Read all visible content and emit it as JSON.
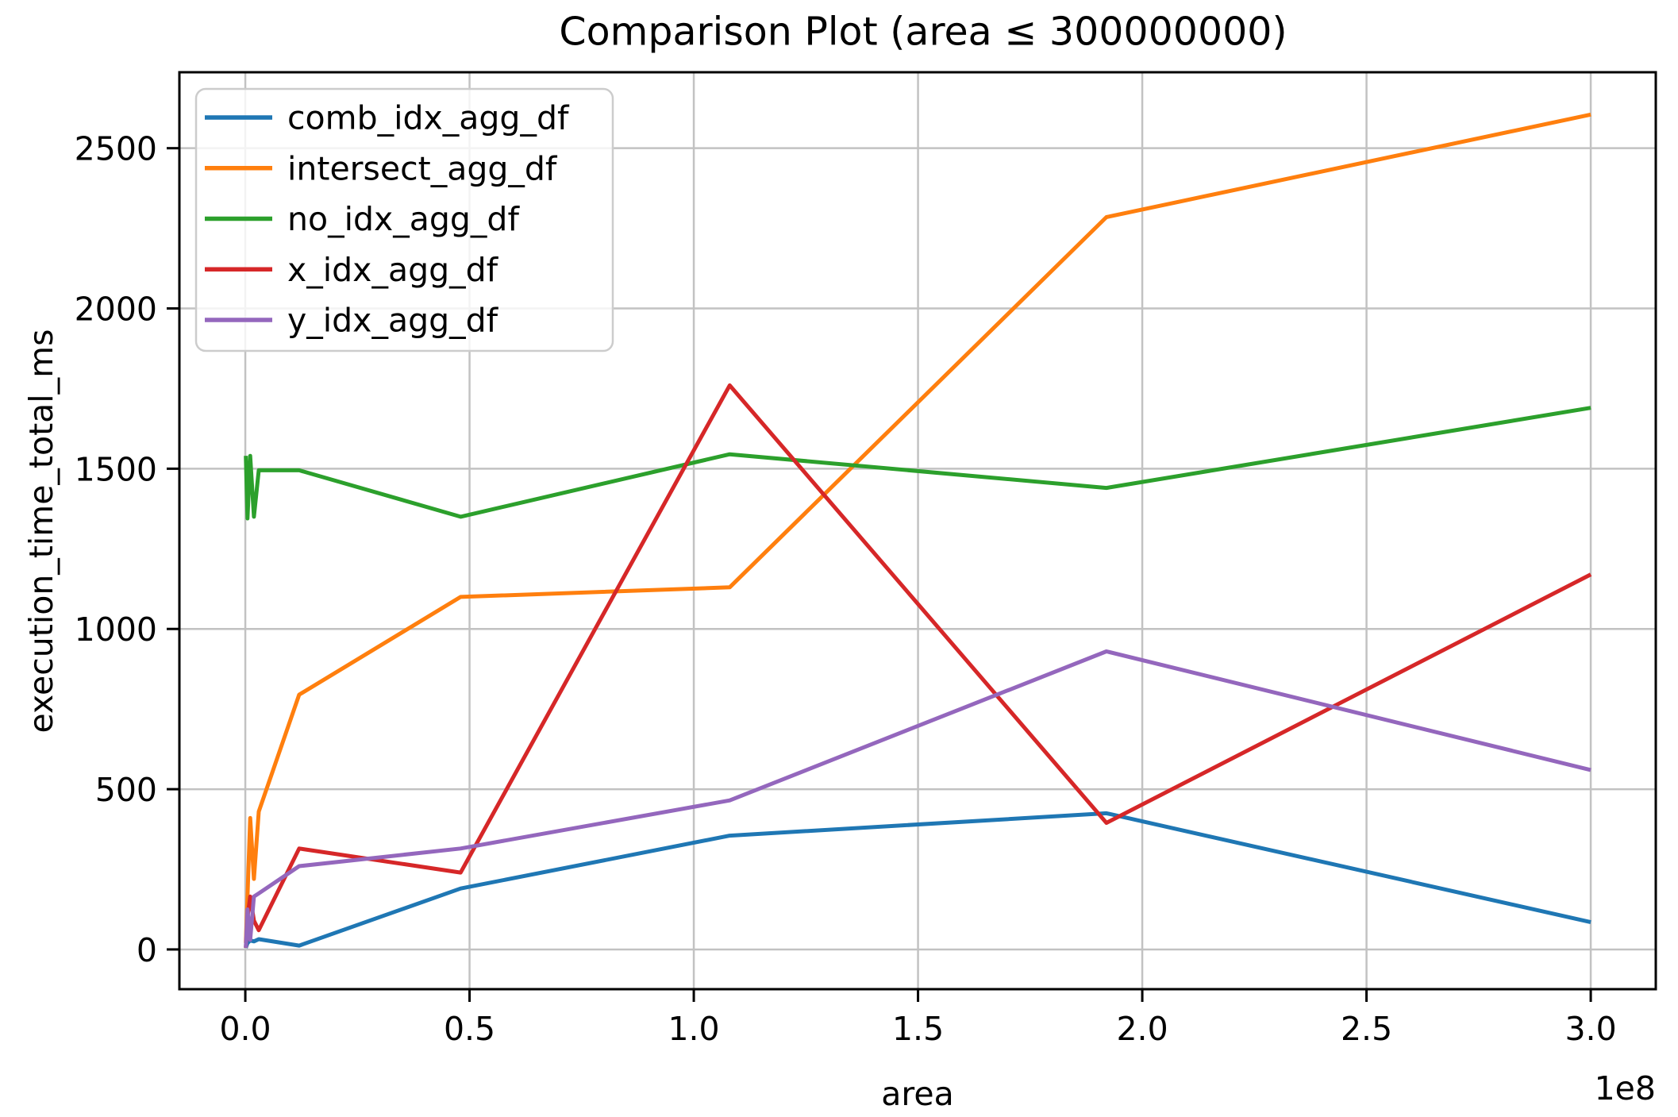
{
  "chart_data": {
    "type": "line",
    "title": "Comparison Plot (area ≤ 300000000)",
    "xlabel": "area",
    "ylabel": "execution_time_total_ms",
    "x_offset_label": "1e8",
    "grid": true,
    "legend_position": "upper left",
    "xlim": [
      -14700000,
      314500000
    ],
    "ylim": [
      -124,
      2737
    ],
    "xticks": {
      "values": [
        0,
        50000000,
        100000000,
        150000000,
        200000000,
        250000000,
        300000000
      ],
      "labels": [
        "0.0",
        "0.5",
        "1.0",
        "1.5",
        "2.0",
        "2.5",
        "3.0"
      ]
    },
    "yticks": {
      "values": [
        0,
        500,
        1000,
        1500,
        2000,
        2500
      ],
      "labels": [
        "0",
        "500",
        "1000",
        "1500",
        "2000",
        "2500"
      ]
    },
    "x": [
      120000,
      480000,
      1080000,
      1920000,
      3000000,
      12000000,
      48000000,
      108000000,
      192000000,
      300000000
    ],
    "series": [
      {
        "name": "comb_idx_agg_df",
        "color": "#1f77b4",
        "values": [
          5,
          20,
          28,
          25,
          32,
          12,
          190,
          355,
          425,
          85
        ]
      },
      {
        "name": "intersect_agg_df",
        "color": "#ff7f0e",
        "values": [
          20,
          165,
          410,
          220,
          430,
          795,
          1100,
          1130,
          2285,
          2605
        ]
      },
      {
        "name": "no_idx_agg_df",
        "color": "#2ca02c",
        "values": [
          1540,
          1345,
          1540,
          1350,
          1495,
          1495,
          1350,
          1545,
          1440,
          1690
        ]
      },
      {
        "name": "x_idx_agg_df",
        "color": "#d62728",
        "values": [
          5,
          100,
          165,
          90,
          60,
          315,
          240,
          1760,
          395,
          1170
        ]
      },
      {
        "name": "y_idx_agg_df",
        "color": "#9467bd",
        "values": [
          5,
          125,
          30,
          165,
          175,
          260,
          315,
          465,
          930,
          560
        ]
      }
    ],
    "style": {
      "background": "#ffffff",
      "grid_color": "#c2c2c2",
      "spine_color": "#000000",
      "legend_border_color": "#cccccc",
      "legend_fill": "rgba(255,255,255,0.8)"
    }
  }
}
